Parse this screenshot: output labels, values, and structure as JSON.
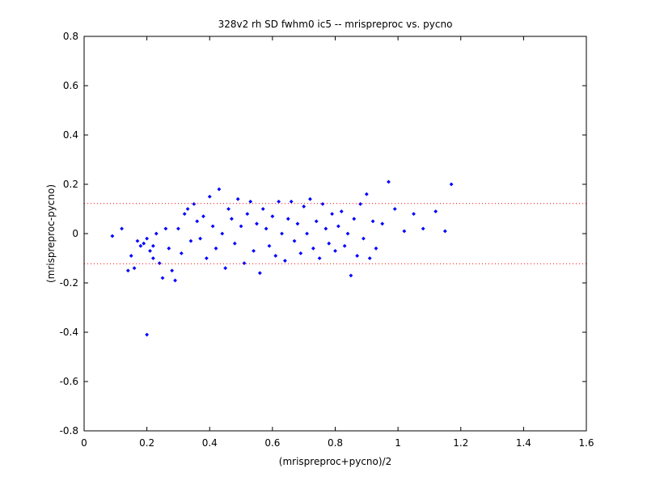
{
  "chart_data": {
    "type": "scatter",
    "title": "328v2 rh SD fwhm0 ic5 -- mrispreproc vs. pycno",
    "xlabel": "(mrispreproc+pycno)/2",
    "ylabel": "(mrispreproc-pycno)",
    "xlim": [
      0,
      1.6
    ],
    "ylim": [
      -0.8,
      0.8
    ],
    "xticks": [
      "0",
      "0.2",
      "0.4",
      "0.6",
      "0.8",
      "1",
      "1.2",
      "1.4",
      "1.6"
    ],
    "yticks": [
      "0.8",
      "0.6",
      "0.4",
      "0.2",
      "0",
      "-0.2",
      "-0.4",
      "-0.6",
      "-0.8"
    ],
    "grid": false,
    "legend": "none",
    "marker_color": "#0000ff",
    "ref_line_color": "#ff0000",
    "reference_lines": [
      0.122,
      -0.122
    ],
    "series": [
      {
        "points": [
          [
            0.09,
            -0.01
          ],
          [
            0.12,
            0.02
          ],
          [
            0.14,
            -0.15
          ],
          [
            0.15,
            -0.09
          ],
          [
            0.16,
            -0.14
          ],
          [
            0.17,
            -0.03
          ],
          [
            0.18,
            -0.05
          ],
          [
            0.19,
            -0.04
          ],
          [
            0.2,
            -0.02
          ],
          [
            0.2,
            -0.41
          ],
          [
            0.21,
            -0.07
          ],
          [
            0.22,
            -0.05
          ],
          [
            0.22,
            -0.1
          ],
          [
            0.23,
            0.0
          ],
          [
            0.24,
            -0.12
          ],
          [
            0.25,
            -0.18
          ],
          [
            0.26,
            0.02
          ],
          [
            0.27,
            -0.06
          ],
          [
            0.28,
            -0.15
          ],
          [
            0.29,
            -0.19
          ],
          [
            0.3,
            0.02
          ],
          [
            0.31,
            -0.08
          ],
          [
            0.32,
            0.08
          ],
          [
            0.33,
            0.1
          ],
          [
            0.34,
            -0.03
          ],
          [
            0.35,
            0.12
          ],
          [
            0.36,
            0.05
          ],
          [
            0.37,
            -0.02
          ],
          [
            0.38,
            0.07
          ],
          [
            0.39,
            -0.1
          ],
          [
            0.4,
            0.15
          ],
          [
            0.41,
            0.03
          ],
          [
            0.42,
            -0.06
          ],
          [
            0.43,
            0.18
          ],
          [
            0.44,
            0.0
          ],
          [
            0.45,
            -0.14
          ],
          [
            0.46,
            0.1
          ],
          [
            0.47,
            0.06
          ],
          [
            0.48,
            -0.04
          ],
          [
            0.49,
            0.14
          ],
          [
            0.5,
            0.03
          ],
          [
            0.51,
            -0.12
          ],
          [
            0.52,
            0.08
          ],
          [
            0.53,
            0.13
          ],
          [
            0.54,
            -0.07
          ],
          [
            0.55,
            0.04
          ],
          [
            0.56,
            -0.16
          ],
          [
            0.57,
            0.1
          ],
          [
            0.58,
            0.02
          ],
          [
            0.59,
            -0.05
          ],
          [
            0.6,
            0.07
          ],
          [
            0.61,
            -0.09
          ],
          [
            0.62,
            0.13
          ],
          [
            0.63,
            0.0
          ],
          [
            0.64,
            -0.11
          ],
          [
            0.65,
            0.06
          ],
          [
            0.66,
            0.13
          ],
          [
            0.67,
            -0.03
          ],
          [
            0.68,
            0.04
          ],
          [
            0.69,
            -0.08
          ],
          [
            0.7,
            0.11
          ],
          [
            0.71,
            0.0
          ],
          [
            0.72,
            0.14
          ],
          [
            0.73,
            -0.06
          ],
          [
            0.74,
            0.05
          ],
          [
            0.75,
            -0.1
          ],
          [
            0.76,
            0.12
          ],
          [
            0.77,
            0.02
          ],
          [
            0.78,
            -0.04
          ],
          [
            0.79,
            0.08
          ],
          [
            0.8,
            -0.07
          ],
          [
            0.81,
            0.03
          ],
          [
            0.82,
            0.09
          ],
          [
            0.83,
            -0.05
          ],
          [
            0.84,
            0.0
          ],
          [
            0.85,
            -0.17
          ],
          [
            0.86,
            0.06
          ],
          [
            0.87,
            -0.09
          ],
          [
            0.88,
            0.12
          ],
          [
            0.89,
            -0.02
          ],
          [
            0.9,
            0.16
          ],
          [
            0.91,
            -0.1
          ],
          [
            0.92,
            0.05
          ],
          [
            0.93,
            -0.06
          ],
          [
            0.95,
            0.04
          ],
          [
            0.97,
            0.21
          ],
          [
            0.99,
            0.1
          ],
          [
            1.02,
            0.01
          ],
          [
            1.05,
            0.08
          ],
          [
            1.08,
            0.02
          ],
          [
            1.12,
            0.09
          ],
          [
            1.15,
            0.01
          ],
          [
            1.17,
            0.2
          ]
        ]
      }
    ]
  }
}
